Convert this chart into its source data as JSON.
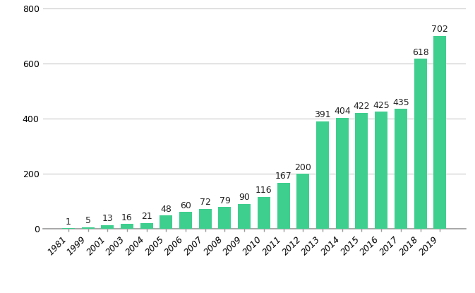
{
  "categories": [
    "1981",
    "1999",
    "2001",
    "2003",
    "2004",
    "2005",
    "2006",
    "2007",
    "2008",
    "2009",
    "2010",
    "2011",
    "2012",
    "2013",
    "2014",
    "2015",
    "2016",
    "2017",
    "2018",
    "2019"
  ],
  "values": [
    1,
    5,
    13,
    16,
    21,
    48,
    60,
    72,
    79,
    90,
    116,
    167,
    200,
    391,
    404,
    422,
    425,
    435,
    618,
    702
  ],
  "bar_color": "#3ecf8e",
  "label_color": "#222222",
  "grid_color": "#c8c8c8",
  "background_color": "#ffffff",
  "ylim": [
    0,
    800
  ],
  "yticks": [
    0,
    200,
    400,
    600,
    800
  ],
  "label_fontsize": 9,
  "tick_fontsize": 9,
  "bar_width": 0.65,
  "fig_width": 6.73,
  "fig_height": 4.15,
  "dpi": 100
}
